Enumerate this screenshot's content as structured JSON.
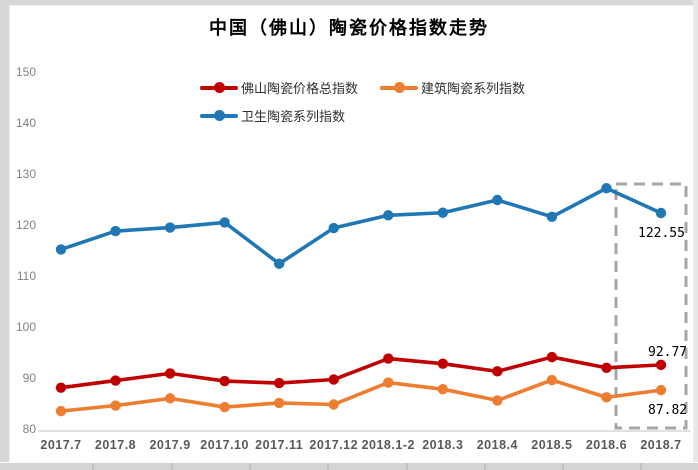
{
  "chart_data": {
    "type": "line",
    "title": "中国（佛山）陶瓷价格指数走势",
    "categories": [
      "2017.7",
      "2017.8",
      "2017.9",
      "2017.10",
      "2017.11",
      "2017.12",
      "2018.1-2",
      "2018.3",
      "2018.4",
      "2018.5",
      "2018.6",
      "2018.7"
    ],
    "series": [
      {
        "name": "佛山陶瓷价格总指数",
        "color": "#c00000",
        "values": [
          88.3,
          89.7,
          91.1,
          89.6,
          89.2,
          89.9,
          94.0,
          93.0,
          91.5,
          94.3,
          92.2,
          92.77
        ]
      },
      {
        "name": "建筑陶瓷系列指数",
        "color": "#ed7d31",
        "values": [
          83.7,
          84.8,
          86.2,
          84.5,
          85.3,
          85.0,
          89.3,
          88.0,
          85.8,
          89.8,
          86.4,
          87.82
        ]
      },
      {
        "name": "卫生陶瓷系列指数",
        "color": "#1f77b4",
        "values": [
          115.4,
          119.0,
          119.7,
          120.7,
          112.6,
          119.6,
          122.1,
          122.6,
          125.1,
          121.8,
          127.4,
          122.55
        ]
      }
    ],
    "ylim": [
      80,
      150
    ],
    "yticks": [
      150,
      140,
      130,
      120,
      110,
      100,
      90,
      80
    ],
    "grid": false,
    "legend_position": "top",
    "axis_line_color": "#d9d9d9",
    "highlight_box_color": "#a6a6a6",
    "annotations": {
      "highlight_category": "2018.7",
      "labels": [
        {
          "series": "卫生陶瓷系列指数",
          "category": "2018.7",
          "text": "122.55"
        },
        {
          "series": "佛山陶瓷价格总指数",
          "category": "2018.7",
          "text": "92.77"
        },
        {
          "series": "建筑陶瓷系列指数",
          "category": "2018.7",
          "text": "87.82"
        }
      ]
    }
  }
}
